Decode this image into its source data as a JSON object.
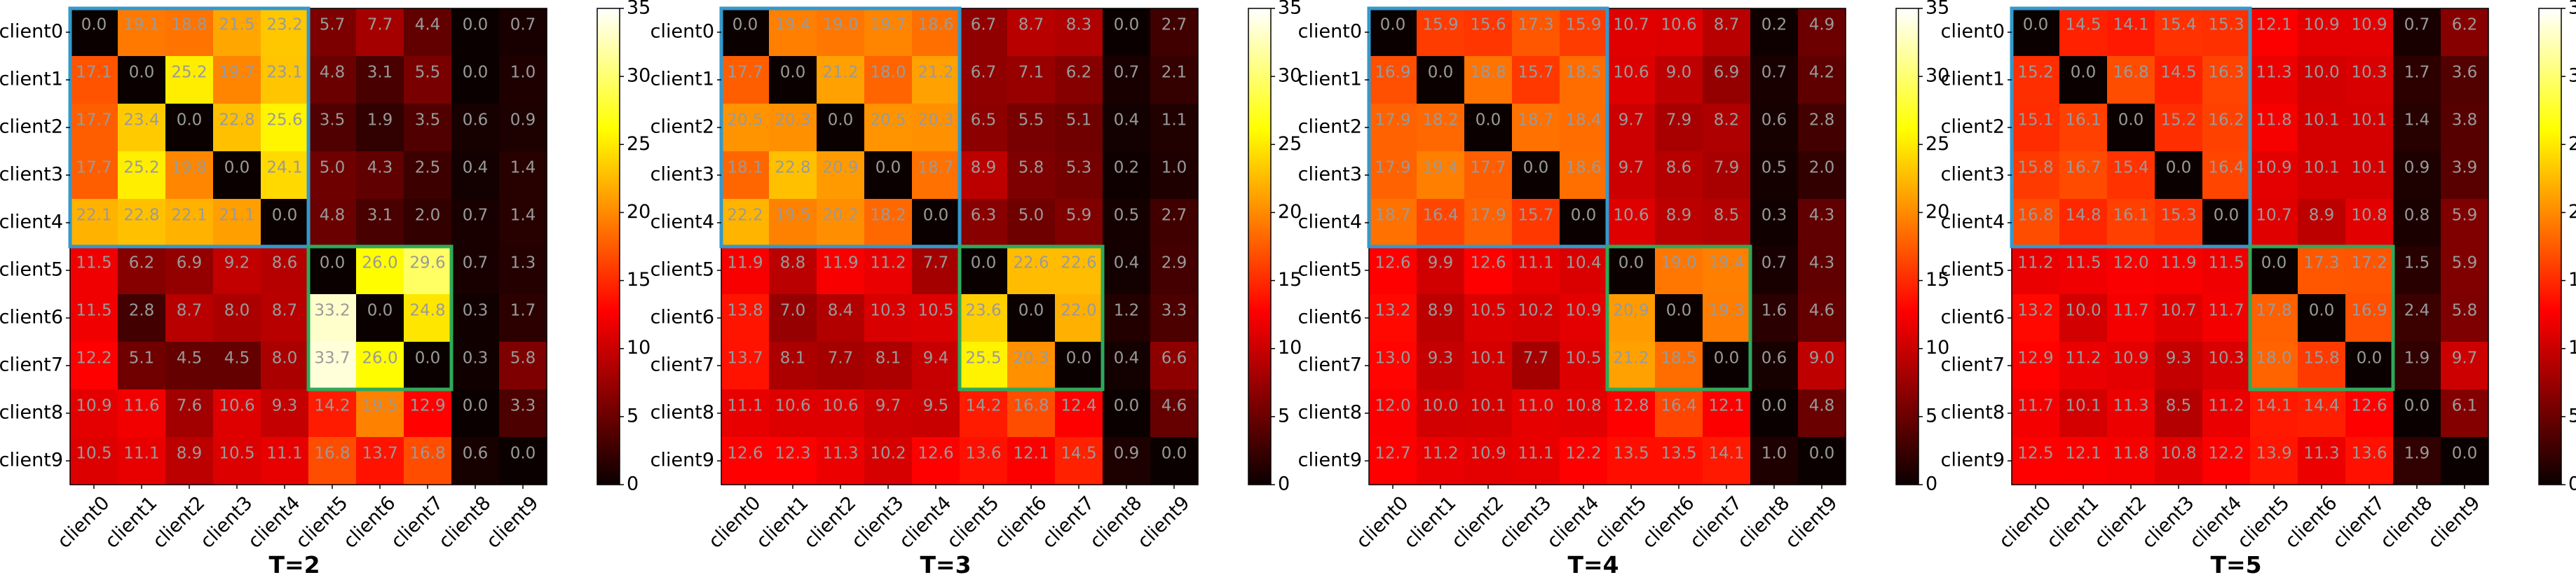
{
  "colors": {
    "cluster_a_box": "#3399cc",
    "cluster_b_box": "#2eaa5a",
    "colormap": "hot"
  },
  "chart_data": [
    {
      "type": "heatmap",
      "title": "T=2",
      "x_labels": [
        "client0",
        "client1",
        "client2",
        "client3",
        "client4",
        "client5",
        "client6",
        "client7",
        "client8",
        "client9"
      ],
      "y_labels": [
        "client0",
        "client1",
        "client2",
        "client3",
        "client4",
        "client5",
        "client6",
        "client7",
        "client8",
        "client9"
      ],
      "colorbar": {
        "min": 0,
        "max": 35,
        "ticks": [
          0,
          5,
          10,
          15,
          20,
          25,
          30,
          35
        ]
      },
      "highlight_boxes": [
        {
          "rows": [
            0,
            4
          ],
          "cols": [
            0,
            4
          ],
          "color": "cluster_a_box"
        },
        {
          "rows": [
            5,
            7
          ],
          "cols": [
            5,
            7
          ],
          "color": "cluster_b_box"
        }
      ],
      "values": [
        [
          0.0,
          19.1,
          18.8,
          21.5,
          23.2,
          5.7,
          7.7,
          4.4,
          0.0,
          0.7
        ],
        [
          17.1,
          0.0,
          25.2,
          19.7,
          23.1,
          4.8,
          3.1,
          5.5,
          0.0,
          1.0
        ],
        [
          17.7,
          23.4,
          0.0,
          22.8,
          25.6,
          3.5,
          1.9,
          3.5,
          0.6,
          0.9
        ],
        [
          17.7,
          25.2,
          19.8,
          0.0,
          24.1,
          5.0,
          4.3,
          2.5,
          0.4,
          1.4
        ],
        [
          22.1,
          22.8,
          22.1,
          21.1,
          0.0,
          4.8,
          3.1,
          2.0,
          0.7,
          1.4
        ],
        [
          11.5,
          6.2,
          6.9,
          9.2,
          8.6,
          0.0,
          26.0,
          29.6,
          0.7,
          1.3
        ],
        [
          11.5,
          2.8,
          8.7,
          8.0,
          8.7,
          33.2,
          0.0,
          24.8,
          0.3,
          1.7
        ],
        [
          12.2,
          5.1,
          4.5,
          4.5,
          8.0,
          33.7,
          26.0,
          0.0,
          0.3,
          5.8
        ],
        [
          10.9,
          11.6,
          7.6,
          10.6,
          9.3,
          14.2,
          19.5,
          12.9,
          0.0,
          3.3
        ],
        [
          10.5,
          11.1,
          8.9,
          10.5,
          11.1,
          16.8,
          13.7,
          16.8,
          0.6,
          0.0
        ]
      ]
    },
    {
      "type": "heatmap",
      "title": "T=3",
      "x_labels": [
        "client0",
        "client1",
        "client2",
        "client3",
        "client4",
        "client5",
        "client6",
        "client7",
        "client8",
        "client9"
      ],
      "y_labels": [
        "client0",
        "client1",
        "client2",
        "client3",
        "client4",
        "client5",
        "client6",
        "client7",
        "client8",
        "client9"
      ],
      "colorbar": {
        "min": 0,
        "max": 35,
        "ticks": [
          0,
          5,
          10,
          15,
          20,
          25,
          30,
          35
        ]
      },
      "highlight_boxes": [
        {
          "rows": [
            0,
            4
          ],
          "cols": [
            0,
            4
          ],
          "color": "cluster_a_box"
        },
        {
          "rows": [
            5,
            7
          ],
          "cols": [
            5,
            7
          ],
          "color": "cluster_b_box"
        }
      ],
      "values": [
        [
          0.0,
          19.4,
          19.0,
          19.7,
          18.6,
          6.7,
          8.7,
          8.3,
          0.0,
          2.7
        ],
        [
          17.7,
          0.0,
          21.2,
          18.0,
          21.2,
          6.7,
          7.1,
          6.2,
          0.7,
          2.1
        ],
        [
          20.5,
          20.3,
          0.0,
          20.5,
          20.3,
          6.5,
          5.5,
          5.1,
          0.4,
          1.1
        ],
        [
          18.1,
          22.8,
          20.9,
          0.0,
          18.7,
          8.9,
          5.8,
          5.3,
          0.2,
          1.0
        ],
        [
          22.2,
          19.5,
          20.2,
          18.2,
          0.0,
          6.3,
          5.0,
          5.9,
          0.5,
          2.7
        ],
        [
          11.9,
          8.8,
          11.9,
          11.2,
          7.7,
          0.0,
          22.6,
          22.6,
          0.4,
          2.9
        ],
        [
          13.8,
          7.0,
          8.4,
          10.3,
          10.5,
          23.6,
          0.0,
          22.0,
          1.2,
          3.3
        ],
        [
          13.7,
          8.1,
          7.7,
          8.1,
          9.4,
          25.5,
          20.3,
          0.0,
          0.4,
          6.6
        ],
        [
          11.1,
          10.6,
          10.6,
          9.7,
          9.5,
          14.2,
          16.8,
          12.4,
          0.0,
          4.6
        ],
        [
          12.6,
          12.3,
          11.3,
          10.2,
          12.6,
          13.6,
          12.1,
          14.5,
          0.9,
          0.0
        ]
      ]
    },
    {
      "type": "heatmap",
      "title": "T=4",
      "x_labels": [
        "client0",
        "client1",
        "client2",
        "client3",
        "client4",
        "client5",
        "client6",
        "client7",
        "client8",
        "client9"
      ],
      "y_labels": [
        "client0",
        "client1",
        "client2",
        "client3",
        "client4",
        "client5",
        "client6",
        "client7",
        "client8",
        "client9"
      ],
      "colorbar": {
        "min": 0,
        "max": 35,
        "ticks": [
          0,
          5,
          10,
          15,
          20,
          25,
          30,
          35
        ]
      },
      "highlight_boxes": [
        {
          "rows": [
            0,
            4
          ],
          "cols": [
            0,
            4
          ],
          "color": "cluster_a_box"
        },
        {
          "rows": [
            5,
            7
          ],
          "cols": [
            5,
            7
          ],
          "color": "cluster_b_box"
        }
      ],
      "values": [
        [
          0.0,
          15.9,
          15.6,
          17.3,
          15.9,
          10.7,
          10.6,
          8.7,
          0.2,
          4.9
        ],
        [
          16.9,
          0.0,
          18.8,
          15.7,
          18.5,
          10.6,
          9.0,
          6.9,
          0.7,
          4.2
        ],
        [
          17.9,
          18.2,
          0.0,
          18.7,
          18.4,
          9.7,
          7.9,
          8.2,
          0.6,
          2.8
        ],
        [
          17.9,
          19.4,
          17.7,
          0.0,
          18.6,
          9.7,
          8.6,
          7.9,
          0.5,
          2.0
        ],
        [
          18.7,
          16.4,
          17.9,
          15.7,
          0.0,
          10.6,
          8.9,
          8.5,
          0.3,
          4.3
        ],
        [
          12.6,
          9.9,
          12.6,
          11.1,
          10.4,
          0.0,
          19.0,
          19.4,
          0.7,
          4.3
        ],
        [
          13.2,
          8.9,
          10.5,
          10.2,
          10.9,
          20.9,
          0.0,
          19.3,
          1.6,
          4.6
        ],
        [
          13.0,
          9.3,
          10.1,
          7.7,
          10.5,
          21.2,
          18.5,
          0.0,
          0.6,
          9.0
        ],
        [
          12.0,
          10.0,
          10.1,
          11.0,
          10.8,
          12.8,
          16.4,
          12.1,
          0.0,
          4.8
        ],
        [
          12.7,
          11.2,
          10.9,
          11.1,
          12.2,
          13.5,
          13.5,
          14.1,
          1.0,
          0.0
        ]
      ]
    },
    {
      "type": "heatmap",
      "title": "T=5",
      "x_labels": [
        "client0",
        "client1",
        "client2",
        "client3",
        "client4",
        "client5",
        "client6",
        "client7",
        "client8",
        "client9"
      ],
      "y_labels": [
        "client0",
        "client1",
        "client2",
        "client3",
        "client4",
        "client5",
        "client6",
        "client7",
        "client8",
        "client9"
      ],
      "colorbar": {
        "min": 0,
        "max": 35,
        "ticks": [
          0,
          5,
          10,
          15,
          20,
          25,
          30,
          35
        ]
      },
      "highlight_boxes": [
        {
          "rows": [
            0,
            4
          ],
          "cols": [
            0,
            4
          ],
          "color": "cluster_a_box"
        },
        {
          "rows": [
            5,
            7
          ],
          "cols": [
            5,
            7
          ],
          "color": "cluster_b_box"
        }
      ],
      "values": [
        [
          0.0,
          14.5,
          14.1,
          15.4,
          15.3,
          12.1,
          10.9,
          10.9,
          0.7,
          6.2
        ],
        [
          15.2,
          0.0,
          16.8,
          14.5,
          16.3,
          11.3,
          10.0,
          10.3,
          1.7,
          3.6
        ],
        [
          15.1,
          16.1,
          0.0,
          15.2,
          16.2,
          11.8,
          10.1,
          10.1,
          1.4,
          3.8
        ],
        [
          15.8,
          16.7,
          15.4,
          0.0,
          16.4,
          10.9,
          10.1,
          10.1,
          0.9,
          3.9
        ],
        [
          16.8,
          14.8,
          16.1,
          15.3,
          0.0,
          10.7,
          8.9,
          10.8,
          0.8,
          5.9
        ],
        [
          11.2,
          11.5,
          12.0,
          11.9,
          11.5,
          0.0,
          17.3,
          17.2,
          1.5,
          5.9
        ],
        [
          13.2,
          10.0,
          11.7,
          10.7,
          11.7,
          17.8,
          0.0,
          16.9,
          2.4,
          5.8
        ],
        [
          12.9,
          11.2,
          10.9,
          9.3,
          10.3,
          18.0,
          15.8,
          0.0,
          1.9,
          9.7
        ],
        [
          11.7,
          10.1,
          11.3,
          8.5,
          11.2,
          14.1,
          14.4,
          12.6,
          0.0,
          6.1
        ],
        [
          12.5,
          12.1,
          11.8,
          10.8,
          12.2,
          13.9,
          11.3,
          13.6,
          1.9,
          0.0
        ]
      ]
    }
  ]
}
